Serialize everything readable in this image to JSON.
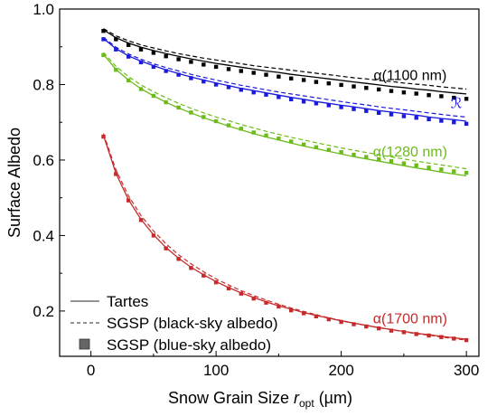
{
  "chart_data": {
    "type": "line",
    "xlabel": "Snow Grain Size ",
    "xlabel_var": "r",
    "xlabel_sub": "opt",
    "xlabel_unit": " (µm)",
    "ylabel": "Surface Albedo",
    "xlim": [
      -25,
      310
    ],
    "ylim": [
      0.08,
      1.0
    ],
    "xticks": [
      0,
      100,
      200,
      300
    ],
    "xtick_labels": [
      "0",
      "100",
      "200",
      "300"
    ],
    "yticks": [
      0.2,
      0.4,
      0.6,
      0.8,
      1.0
    ],
    "ytick_labels": [
      "0.2",
      "0.4",
      "0.6",
      "0.8",
      "1.0"
    ],
    "grid": false,
    "legend": {
      "placement": "bottom-left",
      "entries": [
        {
          "label": "Tartes",
          "style": "solid"
        },
        {
          "label": "SGSP (black-sky albedo)",
          "style": "dashed"
        },
        {
          "label": "SGSP (blue-sky albedo)",
          "style": "square"
        }
      ]
    },
    "x": [
      10,
      20,
      30,
      40,
      50,
      60,
      70,
      80,
      90,
      100,
      110,
      120,
      130,
      140,
      150,
      160,
      170,
      180,
      190,
      200,
      210,
      220,
      230,
      240,
      250,
      260,
      270,
      280,
      290,
      300
    ],
    "series": [
      {
        "name": "α(1100 nm)",
        "color": "#000000",
        "tartes": [
          0.945,
          0.924,
          0.91,
          0.899,
          0.89,
          0.882,
          0.875,
          0.868,
          0.862,
          0.856,
          0.851,
          0.846,
          0.841,
          0.836,
          0.832,
          0.827,
          0.823,
          0.819,
          0.815,
          0.811,
          0.807,
          0.803,
          0.799,
          0.795,
          0.792,
          0.788,
          0.785,
          0.781,
          0.778,
          0.775
        ],
        "black_sky": [
          0.948,
          0.929,
          0.916,
          0.905,
          0.897,
          0.889,
          0.882,
          0.876,
          0.87,
          0.865,
          0.86,
          0.855,
          0.85,
          0.846,
          0.842,
          0.838,
          0.834,
          0.83,
          0.826,
          0.822,
          0.818,
          0.815,
          0.811,
          0.808,
          0.804,
          0.801,
          0.798,
          0.794,
          0.791,
          0.788
        ],
        "blue_sky": [
          0.942,
          0.92,
          0.905,
          0.893,
          0.884,
          0.875,
          0.867,
          0.86,
          0.853,
          0.847,
          0.841,
          0.836,
          0.831,
          0.826,
          0.821,
          0.816,
          0.812,
          0.807,
          0.803,
          0.799,
          0.795,
          0.791,
          0.787,
          0.783,
          0.779,
          0.776,
          0.772,
          0.769,
          0.765,
          0.762
        ]
      },
      {
        "name": "ℛ",
        "color": "#1a1adb",
        "tartes": [
          0.922,
          0.895,
          0.876,
          0.862,
          0.85,
          0.839,
          0.829,
          0.82,
          0.812,
          0.804,
          0.797,
          0.79,
          0.784,
          0.778,
          0.772,
          0.766,
          0.761,
          0.755,
          0.75,
          0.745,
          0.741,
          0.736,
          0.731,
          0.727,
          0.723,
          0.719,
          0.714,
          0.71,
          0.707,
          0.703
        ],
        "black_sky": [
          0.925,
          0.899,
          0.881,
          0.867,
          0.855,
          0.845,
          0.836,
          0.827,
          0.819,
          0.812,
          0.805,
          0.798,
          0.792,
          0.786,
          0.78,
          0.775,
          0.77,
          0.765,
          0.76,
          0.755,
          0.75,
          0.746,
          0.741,
          0.737,
          0.733,
          0.729,
          0.725,
          0.721,
          0.717,
          0.714
        ],
        "blue_sky": [
          0.92,
          0.893,
          0.874,
          0.859,
          0.847,
          0.836,
          0.826,
          0.817,
          0.808,
          0.8,
          0.793,
          0.786,
          0.779,
          0.773,
          0.767,
          0.761,
          0.755,
          0.75,
          0.745,
          0.74,
          0.735,
          0.73,
          0.725,
          0.721,
          0.716,
          0.712,
          0.708,
          0.704,
          0.7,
          0.696
        ]
      },
      {
        "name": "α(1280 nm)",
        "color": "#6cbb1a",
        "tartes": [
          0.88,
          0.84,
          0.812,
          0.789,
          0.77,
          0.753,
          0.738,
          0.725,
          0.712,
          0.701,
          0.69,
          0.68,
          0.67,
          0.661,
          0.653,
          0.645,
          0.637,
          0.63,
          0.623,
          0.616,
          0.609,
          0.603,
          0.597,
          0.591,
          0.585,
          0.579,
          0.574,
          0.568,
          0.563,
          0.558
        ],
        "black_sky": [
          0.885,
          0.848,
          0.821,
          0.799,
          0.781,
          0.765,
          0.75,
          0.737,
          0.725,
          0.714,
          0.704,
          0.694,
          0.685,
          0.676,
          0.668,
          0.66,
          0.653,
          0.646,
          0.639,
          0.632,
          0.626,
          0.62,
          0.614,
          0.608,
          0.603,
          0.597,
          0.592,
          0.587,
          0.582,
          0.577
        ],
        "blue_sky": [
          0.878,
          0.839,
          0.811,
          0.788,
          0.77,
          0.753,
          0.739,
          0.726,
          0.714,
          0.703,
          0.692,
          0.683,
          0.673,
          0.665,
          0.657,
          0.649,
          0.641,
          0.634,
          0.627,
          0.621,
          0.614,
          0.608,
          0.602,
          0.597,
          0.591,
          0.586,
          0.58,
          0.575,
          0.57,
          0.566
        ]
      },
      {
        "name": "α(1700 nm)",
        "color": "#c62b2b",
        "tartes": [
          0.665,
          0.565,
          0.495,
          0.443,
          0.402,
          0.368,
          0.34,
          0.316,
          0.296,
          0.278,
          0.262,
          0.248,
          0.236,
          0.224,
          0.214,
          0.205,
          0.196,
          0.188,
          0.181,
          0.174,
          0.168,
          0.162,
          0.156,
          0.151,
          0.146,
          0.141,
          0.137,
          0.133,
          0.129,
          0.125
        ],
        "black_sky": [
          0.67,
          0.574,
          0.505,
          0.453,
          0.412,
          0.378,
          0.349,
          0.325,
          0.304,
          0.285,
          0.269,
          0.254,
          0.241,
          0.229,
          0.218,
          0.208,
          0.199,
          0.19,
          0.182,
          0.175,
          0.168,
          0.162,
          0.156,
          0.151,
          0.145,
          0.14,
          0.136,
          0.131,
          0.127,
          0.123
        ],
        "blue_sky": [
          0.662,
          0.563,
          0.493,
          0.441,
          0.4,
          0.366,
          0.338,
          0.314,
          0.294,
          0.276,
          0.26,
          0.246,
          0.233,
          0.222,
          0.212,
          0.202,
          0.194,
          0.186,
          0.178,
          0.171,
          0.165,
          0.159,
          0.154,
          0.148,
          0.144,
          0.139,
          0.135,
          0.131,
          0.127,
          0.123
        ]
      }
    ],
    "annotations": [
      {
        "text": "α(1100 nm)",
        "x": 255,
        "y": 0.812,
        "color": "#000000"
      },
      {
        "text": "ℛ",
        "x": 292,
        "y": 0.738,
        "color": "#1a1adb"
      },
      {
        "text": "α(1280 nm)",
        "x": 255,
        "y": 0.61,
        "color": "#6cbb1a"
      },
      {
        "text": "α(1700 nm)",
        "x": 255,
        "y": 0.168,
        "color": "#c62b2b"
      }
    ]
  }
}
